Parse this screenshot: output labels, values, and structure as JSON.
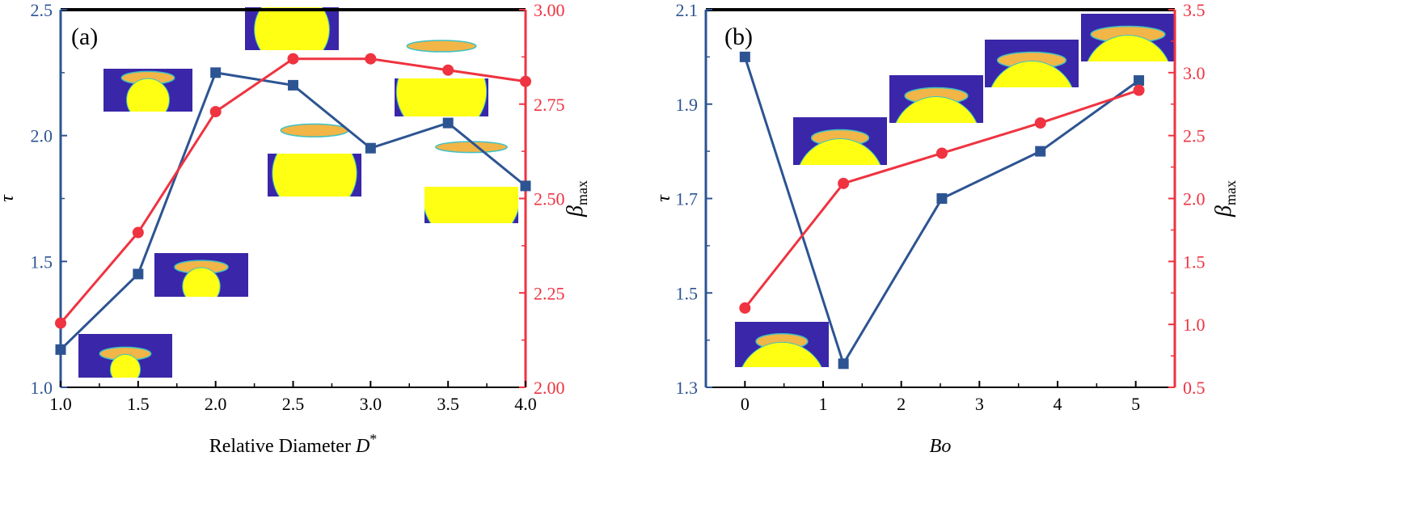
{
  "colors": {
    "blue": "#2d5492",
    "red": "#ef3340",
    "black": "#000000",
    "inset_bg": "#3a26a8",
    "inset_film": "#f2b547",
    "inset_film_edge": "#3ec2c4",
    "inset_sphere": "#ffff14"
  },
  "chart_data": [
    {
      "type": "line",
      "panel_label": "(a)",
      "title": "",
      "xlabel": "Relative Diameter D",
      "xlabel_main": "Relative Diameter ",
      "xlabel_var": "D",
      "xlabel_sup": "*",
      "ylabel_left": "τ",
      "ylabel_right": "β",
      "ylabel_right_sub": "max",
      "xlim": [
        1.0,
        4.0
      ],
      "ylim_left": [
        1.0,
        2.5
      ],
      "ylim_right": [
        2.0,
        3.0
      ],
      "x_ticks": [
        "1.0",
        "1.5",
        "2.0",
        "2.5",
        "3.0",
        "3.5",
        "4.0"
      ],
      "y_left_ticks": [
        "1.0",
        "1.5",
        "2.0",
        "2.5"
      ],
      "y_right_ticks": [
        "2.00",
        "2.25",
        "2.50",
        "2.75",
        "3.00"
      ],
      "series": [
        {
          "name": "τ",
          "axis": "left",
          "marker": "square",
          "x": [
            1.0,
            1.5,
            2.0,
            2.5,
            3.0,
            3.5,
            4.0
          ],
          "y": [
            1.15,
            1.45,
            2.25,
            2.2,
            1.95,
            2.05,
            1.8
          ]
        },
        {
          "name": "β_max",
          "axis": "right",
          "marker": "circle",
          "x": [
            1.0,
            1.5,
            2.0,
            2.5,
            3.0,
            3.5,
            4.0
          ],
          "y": [
            2.17,
            2.41,
            2.73,
            2.87,
            2.87,
            2.84,
            2.81
          ]
        }
      ],
      "insets": [
        {
          "D": 1.0,
          "description": "droplet spreading on small sphere"
        },
        {
          "D": 1.5,
          "description": "droplet spreading on sphere"
        },
        {
          "D": 2.0,
          "description": "droplet spreading on sphere"
        },
        {
          "D": 2.5,
          "description": "droplet spreading on sphere"
        },
        {
          "D": 3.0,
          "description": "droplet spreading on sphere"
        },
        {
          "D": 3.5,
          "description": "droplet spreading on sphere"
        },
        {
          "D": 4.0,
          "description": "droplet spreading on large sphere"
        }
      ]
    },
    {
      "type": "line",
      "panel_label": "(b)",
      "title": "",
      "xlabel": "Bo",
      "ylabel_left": "τ",
      "ylabel_right": "β",
      "ylabel_right_sub": "max",
      "xlim": [
        -0.5,
        5.5
      ],
      "ylim_left": [
        1.3,
        2.1
      ],
      "ylim_right": [
        0.5,
        3.5
      ],
      "x_ticks": [
        "0",
        "1",
        "2",
        "3",
        "4",
        "5"
      ],
      "y_left_ticks": [
        "1.3",
        "1.5",
        "1.7",
        "1.9",
        "2.1"
      ],
      "y_right_ticks": [
        "0.5",
        "1.0",
        "1.5",
        "2.0",
        "2.5",
        "3.0",
        "3.5"
      ],
      "series": [
        {
          "name": "τ",
          "axis": "left",
          "marker": "square",
          "x": [
            0,
            1.26,
            2.52,
            3.78,
            5.04
          ],
          "y": [
            2.0,
            1.35,
            1.7,
            1.8,
            1.95
          ]
        },
        {
          "name": "β_max",
          "axis": "right",
          "marker": "circle",
          "x": [
            0,
            1.26,
            2.52,
            3.78,
            5.04
          ],
          "y": [
            1.13,
            2.12,
            2.36,
            2.6,
            2.86
          ]
        }
      ],
      "insets": [
        {
          "Bo": 0,
          "description": "flattened droplet on sphere"
        },
        {
          "Bo": 1.26,
          "description": "flattened droplet on sphere"
        },
        {
          "Bo": 2.52,
          "description": "flattened droplet on sphere"
        },
        {
          "Bo": 3.78,
          "description": "flattened droplet on sphere"
        },
        {
          "Bo": 5.04,
          "description": "flattened droplet on sphere"
        }
      ]
    }
  ]
}
